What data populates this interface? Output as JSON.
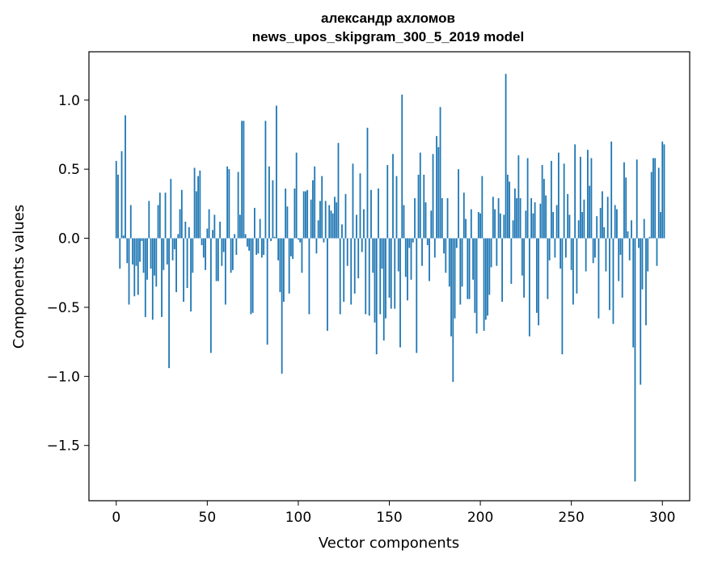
{
  "chart_data": {
    "type": "bar",
    "title_line1": "александр ахломов",
    "title_line2": "news_upos_skipgram_300_5_2019 model",
    "xlabel": "Vector components",
    "ylabel": "Components values",
    "xlim": [
      -15,
      315
    ],
    "ylim": [
      -1.9,
      1.35
    ],
    "x_ticks": [
      0,
      50,
      100,
      150,
      200,
      250,
      300
    ],
    "x_tick_labels": [
      "0",
      "50",
      "100",
      "150",
      "200",
      "250",
      "300"
    ],
    "y_ticks": [
      -1.5,
      -1.0,
      -0.5,
      0.0,
      0.5,
      1.0
    ],
    "y_tick_labels": [
      "−1.5",
      "−1.0",
      "−0.5",
      "0.0",
      "0.5",
      "1.0"
    ],
    "bar_color": "#1f77b4",
    "values": [
      0.56,
      0.46,
      -0.22,
      0.63,
      0.02,
      0.89,
      -0.18,
      -0.48,
      0.24,
      -0.19,
      -0.42,
      -0.2,
      -0.41,
      -0.17,
      -0.02,
      -0.25,
      -0.57,
      -0.3,
      0.27,
      -0.22,
      -0.59,
      -0.27,
      -0.35,
      0.24,
      0.33,
      -0.57,
      -0.23,
      0.33,
      -0.19,
      -0.94,
      0.43,
      -0.16,
      -0.08,
      -0.39,
      0.03,
      0.21,
      0.35,
      -0.46,
      0.12,
      -0.36,
      0.08,
      -0.53,
      -0.25,
      0.51,
      0.34,
      0.45,
      0.49,
      -0.05,
      -0.14,
      -0.23,
      0.07,
      0.21,
      -0.83,
      0.06,
      0.17,
      -0.31,
      -0.31,
      0.12,
      -0.2,
      -0.1,
      -0.48,
      0.52,
      0.5,
      -0.25,
      -0.23,
      0.03,
      -0.12,
      0.48,
      0.17,
      0.85,
      0.85,
      0.03,
      -0.06,
      -0.09,
      -0.55,
      -0.54,
      0.22,
      -0.12,
      -0.11,
      0.14,
      -0.14,
      -0.12,
      0.85,
      -0.77,
      0.52,
      -0.02,
      0.42,
      0.01,
      0.96,
      -0.16,
      -0.39,
      -0.98,
      -0.46,
      0.36,
      0.23,
      -0.4,
      -0.13,
      -0.15,
      0.36,
      0.62,
      -0.01,
      -0.03,
      -0.25,
      0.34,
      0.34,
      0.35,
      -0.55,
      0.28,
      0.42,
      0.52,
      -0.11,
      0.13,
      0.27,
      0.45,
      -0.03,
      0.27,
      -0.67,
      0.24,
      0.2,
      0.18,
      0.3,
      0.26,
      0.69,
      -0.55,
      0.1,
      -0.46,
      0.32,
      -0.2,
      0.0,
      -0.48,
      0.54,
      -0.4,
      0.17,
      -0.29,
      0.47,
      -0.1,
      0.21,
      -0.55,
      0.8,
      -0.56,
      0.35,
      -0.25,
      -0.61,
      -0.84,
      0.36,
      -0.55,
      -0.22,
      -0.74,
      -0.58,
      0.53,
      -0.43,
      -0.51,
      0.61,
      -0.51,
      0.45,
      -0.24,
      -0.79,
      1.04,
      0.24,
      -0.28,
      -0.45,
      -0.07,
      -0.3,
      -0.03,
      0.29,
      -0.83,
      0.46,
      0.62,
      -0.2,
      0.46,
      0.26,
      -0.05,
      -0.31,
      0.2,
      0.61,
      -0.14,
      0.74,
      0.66,
      0.95,
      0.29,
      -0.11,
      -0.25,
      0.29,
      -0.35,
      -0.71,
      -1.04,
      -0.58,
      -0.07,
      0.5,
      -0.48,
      -0.35,
      0.33,
      0.14,
      -0.44,
      -0.44,
      0.21,
      -0.3,
      -0.54,
      -0.69,
      0.19,
      0.18,
      0.45,
      -0.67,
      -0.59,
      -0.56,
      -0.41,
      -0.21,
      0.3,
      0.21,
      -0.2,
      0.29,
      0.18,
      -0.46,
      0.17,
      1.19,
      0.46,
      0.41,
      -0.33,
      0.13,
      0.36,
      0.29,
      0.6,
      0.29,
      -0.27,
      -0.43,
      0.2,
      0.58,
      -0.71,
      0.29,
      0.18,
      0.26,
      -0.54,
      -0.63,
      0.25,
      0.53,
      0.43,
      0.31,
      -0.44,
      -0.16,
      0.56,
      0.19,
      -0.14,
      0.24,
      0.62,
      -0.22,
      -0.84,
      0.54,
      -0.14,
      0.32,
      0.17,
      -0.23,
      -0.48,
      0.68,
      -0.4,
      0.13,
      0.59,
      0.19,
      0.28,
      -0.24,
      0.64,
      0.38,
      0.58,
      -0.18,
      -0.14,
      0.16,
      -0.58,
      0.22,
      0.34,
      0.08,
      -0.24,
      0.3,
      -0.52,
      0.7,
      -0.62,
      0.24,
      0.21,
      -0.31,
      -0.12,
      -0.43,
      0.55,
      0.44,
      0.05,
      -0.16,
      0.13,
      -0.79,
      -1.76,
      0.57,
      -0.07,
      -1.06,
      -0.37,
      0.14,
      -0.63,
      -0.24,
      0.01,
      0.48,
      0.58,
      0.58,
      -0.2,
      0.51,
      0.19,
      0.7,
      0.68
    ]
  }
}
